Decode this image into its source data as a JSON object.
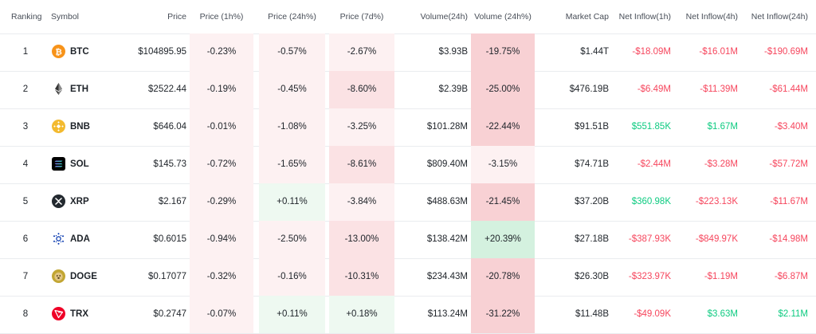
{
  "headers": {
    "ranking": "Ranking",
    "symbol": "Symbol",
    "price": "Price",
    "price_1h": "Price (1h%)",
    "price_24h": "Price (24h%)",
    "price_7d": "Price (7d%)",
    "volume_24h": "Volume(24h)",
    "volume_24h_pct": "Volume (24h%)",
    "market_cap": "Market Cap",
    "inflow_1h": "Net Inflow(1h)",
    "inflow_4h": "Net Inflow(4h)",
    "inflow_24h": "Net Inflow(24h)"
  },
  "colors": {
    "negative": "#f6465d",
    "positive": "#0ecb81",
    "neg_bg_light": "#fdf1f2",
    "neg_bg_mid": "#fbe2e4",
    "neg_bg_strong": "#f8d1d4",
    "pos_bg_light": "#eef9f1",
    "pos_bg_strong": "#d4f1df"
  },
  "rows": [
    {
      "rank": "1",
      "symbol": "BTC",
      "icon": "btc-icon",
      "price": "$104895.95",
      "p1h": "-0.23%",
      "p24h": "-0.57%",
      "p7d": "-2.67%",
      "vol": "$3.93B",
      "volpct": "-19.75%",
      "mcap": "$1.44T",
      "in1h": "-$18.09M",
      "in4h": "-$16.01M",
      "in24h": "-$190.69M"
    },
    {
      "rank": "2",
      "symbol": "ETH",
      "icon": "eth-icon",
      "price": "$2522.44",
      "p1h": "-0.19%",
      "p24h": "-0.45%",
      "p7d": "-8.60%",
      "vol": "$2.39B",
      "volpct": "-25.00%",
      "mcap": "$476.19B",
      "in1h": "-$6.49M",
      "in4h": "-$11.39M",
      "in24h": "-$61.44M"
    },
    {
      "rank": "3",
      "symbol": "BNB",
      "icon": "bnb-icon",
      "price": "$646.04",
      "p1h": "-0.01%",
      "p24h": "-1.08%",
      "p7d": "-3.25%",
      "vol": "$101.28M",
      "volpct": "-22.44%",
      "mcap": "$91.51B",
      "in1h": "$551.85K",
      "in4h": "$1.67M",
      "in24h": "-$3.40M"
    },
    {
      "rank": "4",
      "symbol": "SOL",
      "icon": "sol-icon",
      "price": "$145.73",
      "p1h": "-0.72%",
      "p24h": "-1.65%",
      "p7d": "-8.61%",
      "vol": "$809.40M",
      "volpct": "-3.15%",
      "mcap": "$74.71B",
      "in1h": "-$2.44M",
      "in4h": "-$3.28M",
      "in24h": "-$57.72M"
    },
    {
      "rank": "5",
      "symbol": "XRP",
      "icon": "xrp-icon",
      "price": "$2.167",
      "p1h": "-0.29%",
      "p24h": "+0.11%",
      "p7d": "-3.84%",
      "vol": "$488.63M",
      "volpct": "-21.45%",
      "mcap": "$37.20B",
      "in1h": "$360.98K",
      "in4h": "-$223.13K",
      "in24h": "-$11.67M"
    },
    {
      "rank": "6",
      "symbol": "ADA",
      "icon": "ada-icon",
      "price": "$0.6015",
      "p1h": "-0.94%",
      "p24h": "-2.50%",
      "p7d": "-13.00%",
      "vol": "$138.42M",
      "volpct": "+20.39%",
      "mcap": "$27.18B",
      "in1h": "-$387.93K",
      "in4h": "-$849.97K",
      "in24h": "-$14.98M"
    },
    {
      "rank": "7",
      "symbol": "DOGE",
      "icon": "doge-icon",
      "price": "$0.17077",
      "p1h": "-0.32%",
      "p24h": "-0.16%",
      "p7d": "-10.31%",
      "vol": "$234.43M",
      "volpct": "-20.78%",
      "mcap": "$26.30B",
      "in1h": "-$323.97K",
      "in4h": "-$1.19M",
      "in24h": "-$6.87M"
    },
    {
      "rank": "8",
      "symbol": "TRX",
      "icon": "trx-icon",
      "price": "$0.2747",
      "p1h": "-0.07%",
      "p24h": "+0.11%",
      "p7d": "+0.18%",
      "vol": "$113.24M",
      "volpct": "-31.22%",
      "mcap": "$11.48B",
      "in1h": "-$49.09K",
      "in4h": "$3.63M",
      "in24h": "$2.11M"
    }
  ]
}
